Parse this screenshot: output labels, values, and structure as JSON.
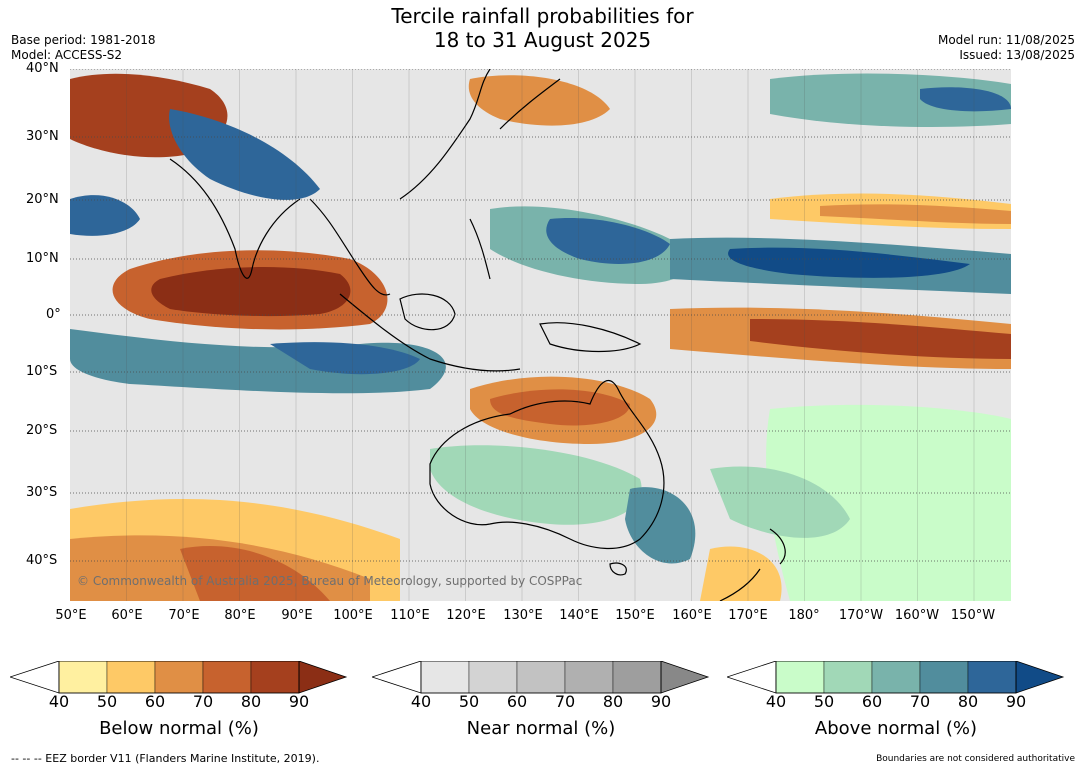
{
  "header": {
    "title_line1": "Tercile rainfall probabilities for",
    "title_line2": "18 to 31 August 2025",
    "base_period": "Base period: 1981-2018",
    "model": "Model: ACCESS-S2",
    "model_run": "Model run: 11/08/2025",
    "issued": "Issued: 13/08/2025"
  },
  "map": {
    "lat_labels": [
      "40°N",
      "30°N",
      "20°N",
      "10°N",
      "0°",
      "10°S",
      "20°S",
      "30°S",
      "40°S"
    ],
    "lon_labels": [
      "50°E",
      "60°E",
      "70°E",
      "80°E",
      "90°E",
      "100°E",
      "110°E",
      "120°E",
      "130°E",
      "140°E",
      "150°E",
      "160°E",
      "170°E",
      "180°",
      "170°W",
      "160°W",
      "150°W"
    ],
    "copyright": "© Commonwealth of Australia 2025, Bureau of Meteorology, supported by COSPPac",
    "background_color": "#e6e6e6",
    "coastline_color": "#000000"
  },
  "legends": [
    {
      "title": "Below normal (%)",
      "ticks": [
        "40",
        "50",
        "60",
        "70",
        "80",
        "90"
      ],
      "colors": [
        "#fff0a0",
        "#fec966",
        "#e08f45",
        "#c7622e",
        "#a5401e",
        "#8b2e15"
      ]
    },
    {
      "title": "Near normal (%)",
      "ticks": [
        "40",
        "50",
        "60",
        "70",
        "80",
        "90"
      ],
      "colors": [
        "#e6e6e6",
        "#d3d3d3",
        "#c2c2c2",
        "#b0b0b0",
        "#9e9e9e",
        "#888888"
      ]
    },
    {
      "title": "Above normal (%)",
      "ticks": [
        "40",
        "50",
        "60",
        "70",
        "80",
        "90"
      ],
      "colors": [
        "#c9fcc9",
        "#a1d8b7",
        "#79b3ab",
        "#518d9d",
        "#2e6699",
        "#114b87"
      ]
    }
  ],
  "footer": {
    "eez_note": "--  --  -- EEZ border V11 (Flanders Marine Institute, 2019).",
    "auth_note": "Boundaries are not considered authoritative"
  }
}
